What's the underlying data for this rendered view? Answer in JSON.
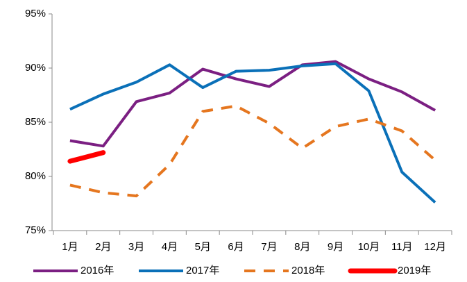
{
  "chart_data": {
    "type": "line",
    "categories": [
      "1月",
      "2月",
      "3月",
      "4月",
      "5月",
      "6月",
      "7月",
      "8月",
      "9月",
      "10月",
      "11月",
      "12月"
    ],
    "series": [
      {
        "name": "2016年",
        "color": "#7b1f82",
        "values": [
          83.3,
          82.8,
          86.9,
          87.7,
          89.9,
          89.0,
          88.3,
          90.3,
          90.6,
          89.0,
          87.8,
          86.1
        ]
      },
      {
        "name": "2017年",
        "color": "#0a70b8",
        "values": [
          86.2,
          87.6,
          88.7,
          90.3,
          88.2,
          89.7,
          89.8,
          90.2,
          90.4,
          87.9,
          80.4,
          77.6
        ]
      },
      {
        "name": "2018年",
        "color": "#e5761f",
        "dashed": true,
        "values": [
          79.2,
          78.5,
          78.2,
          81.1,
          86.0,
          86.5,
          84.9,
          82.6,
          84.6,
          85.3,
          84.2,
          81.5
        ]
      },
      {
        "name": "2019年",
        "color": "#ff0000",
        "linewidth": 7,
        "values": [
          81.4,
          82.2,
          null,
          null,
          null,
          null,
          null,
          null,
          null,
          null,
          null,
          null
        ]
      }
    ],
    "ylim": [
      75,
      95
    ],
    "yticks": [
      {
        "value": 75,
        "label": "75%"
      },
      {
        "value": 80,
        "label": "80%"
      },
      {
        "value": 85,
        "label": "85%"
      },
      {
        "value": 90,
        "label": "90%"
      },
      {
        "value": 95,
        "label": "95%"
      }
    ],
    "legend": "bottom"
  }
}
